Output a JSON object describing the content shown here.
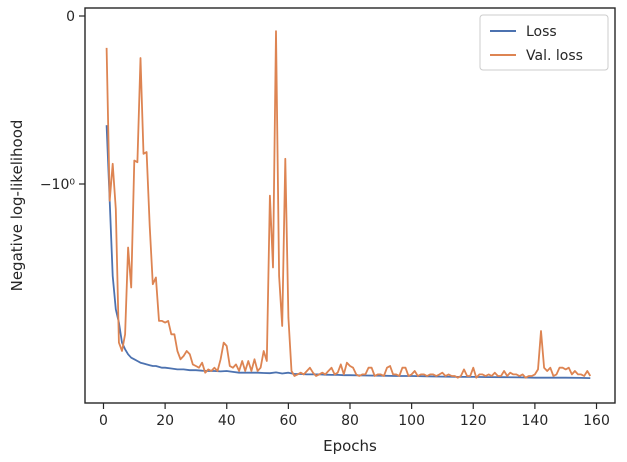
{
  "chart_data": {
    "type": "line",
    "xlabel": "Epochs",
    "ylabel": "Negative log-likelihood",
    "xlim": [
      -6,
      166
    ],
    "x_ticks": [
      0,
      20,
      40,
      60,
      80,
      100,
      120,
      140,
      160
    ],
    "y_scale": "symlog",
    "y_ticks": [
      {
        "value": 0,
        "label": "0"
      },
      {
        "value": -1,
        "label": "−10⁰"
      }
    ],
    "legend": "top-right",
    "grid": false,
    "series": [
      {
        "name": "Loss",
        "color": "#4c72b0",
        "x": [
          1,
          2,
          3,
          4,
          5,
          6,
          7,
          8,
          9,
          10,
          11,
          12,
          13,
          14,
          15,
          16,
          17,
          18,
          19,
          20,
          22,
          24,
          26,
          28,
          30,
          32,
          34,
          36,
          38,
          40,
          42,
          44,
          46,
          48,
          50,
          52,
          54,
          56,
          58,
          60,
          62,
          64,
          66,
          68,
          70,
          72,
          74,
          76,
          78,
          80,
          85,
          90,
          95,
          100,
          105,
          110,
          115,
          120,
          125,
          130,
          135,
          140,
          145,
          150,
          155,
          158
        ],
        "values": [
          -0.65,
          -1.1,
          -1.55,
          -1.75,
          -1.83,
          -1.95,
          -1.99,
          -2.02,
          -2.04,
          -2.05,
          -2.06,
          -2.07,
          -2.075,
          -2.08,
          -2.085,
          -2.09,
          -2.09,
          -2.095,
          -2.1,
          -2.1,
          -2.105,
          -2.11,
          -2.11,
          -2.115,
          -2.115,
          -2.118,
          -2.12,
          -2.12,
          -2.122,
          -2.12,
          -2.125,
          -2.13,
          -2.13,
          -2.13,
          -2.13,
          -2.132,
          -2.133,
          -2.128,
          -2.135,
          -2.13,
          -2.138,
          -2.138,
          -2.14,
          -2.14,
          -2.14,
          -2.142,
          -2.143,
          -2.143,
          -2.145,
          -2.145,
          -2.147,
          -2.148,
          -2.15,
          -2.15,
          -2.152,
          -2.153,
          -2.155,
          -2.155,
          -2.156,
          -2.157,
          -2.158,
          -2.16,
          -2.16,
          -2.16,
          -2.161,
          -2.162
        ]
      },
      {
        "name": "Val. loss",
        "color": "#dd8452",
        "x": [
          1,
          2,
          3,
          4,
          5,
          6,
          7,
          8,
          9,
          10,
          11,
          12,
          13,
          14,
          15,
          16,
          17,
          18,
          19,
          20,
          21,
          22,
          23,
          24,
          25,
          26,
          27,
          28,
          29,
          30,
          31,
          32,
          33,
          34,
          35,
          36,
          37,
          38,
          39,
          40,
          41,
          42,
          43,
          44,
          45,
          46,
          47,
          48,
          49,
          50,
          51,
          52,
          53,
          54,
          55,
          56,
          57,
          58,
          59,
          60,
          61,
          62,
          63,
          64,
          65,
          66,
          67,
          68,
          69,
          70,
          71,
          72,
          73,
          74,
          75,
          76,
          77,
          78,
          79,
          80,
          81,
          82,
          83,
          84,
          85,
          86,
          87,
          88,
          89,
          90,
          91,
          92,
          93,
          94,
          95,
          96,
          97,
          98,
          99,
          100,
          101,
          102,
          103,
          104,
          105,
          106,
          107,
          108,
          109,
          110,
          111,
          112,
          113,
          114,
          115,
          116,
          117,
          118,
          119,
          120,
          121,
          122,
          123,
          124,
          125,
          126,
          127,
          128,
          129,
          130,
          131,
          132,
          133,
          134,
          135,
          136,
          137,
          138,
          139,
          140,
          141,
          142,
          143,
          144,
          145,
          146,
          147,
          148,
          149,
          150,
          151,
          152,
          153,
          154,
          155,
          156,
          157,
          158
        ],
        "values": [
          -0.19,
          -1.1,
          -0.88,
          -1.15,
          -1.95,
          -2.0,
          -1.9,
          -1.38,
          -1.62,
          -0.86,
          -0.87,
          -0.25,
          -0.82,
          -0.81,
          -1.25,
          -1.6,
          -1.56,
          -1.82,
          -1.82,
          -1.83,
          -1.82,
          -1.9,
          -1.9,
          -2.0,
          -2.05,
          -2.03,
          -2.0,
          -2.02,
          -2.08,
          -2.09,
          -2.1,
          -2.07,
          -2.13,
          -2.11,
          -2.12,
          -2.1,
          -2.12,
          -2.05,
          -1.95,
          -1.97,
          -2.09,
          -2.1,
          -2.08,
          -2.12,
          -2.06,
          -2.12,
          -2.06,
          -2.12,
          -2.05,
          -2.12,
          -2.1,
          -2.0,
          -2.06,
          -1.07,
          -1.5,
          -0.09,
          -1.55,
          -1.85,
          -0.85,
          -1.8,
          -2.12,
          -2.15,
          -2.14,
          -2.13,
          -2.14,
          -2.12,
          -2.1,
          -2.13,
          -2.15,
          -2.14,
          -2.13,
          -2.14,
          -2.12,
          -2.1,
          -2.14,
          -2.13,
          -2.08,
          -2.14,
          -2.07,
          -2.09,
          -2.1,
          -2.14,
          -2.15,
          -2.14,
          -2.14,
          -2.1,
          -2.1,
          -2.15,
          -2.14,
          -2.14,
          -2.15,
          -2.1,
          -2.09,
          -2.14,
          -2.14,
          -2.15,
          -2.1,
          -2.1,
          -2.15,
          -2.14,
          -2.12,
          -2.15,
          -2.14,
          -2.14,
          -2.15,
          -2.14,
          -2.14,
          -2.15,
          -2.14,
          -2.13,
          -2.15,
          -2.14,
          -2.15,
          -2.15,
          -2.16,
          -2.15,
          -2.11,
          -2.15,
          -2.15,
          -2.1,
          -2.16,
          -2.14,
          -2.14,
          -2.15,
          -2.14,
          -2.15,
          -2.13,
          -2.15,
          -2.15,
          -2.12,
          -2.15,
          -2.13,
          -2.14,
          -2.14,
          -2.15,
          -2.14,
          -2.16,
          -2.15,
          -2.15,
          -2.14,
          -2.11,
          -1.88,
          -2.1,
          -2.12,
          -2.1,
          -2.15,
          -2.14,
          -2.1,
          -2.1,
          -2.11,
          -2.1,
          -2.14,
          -2.12,
          -2.14,
          -2.14,
          -2.15,
          -2.12,
          -2.15
        ]
      }
    ]
  }
}
